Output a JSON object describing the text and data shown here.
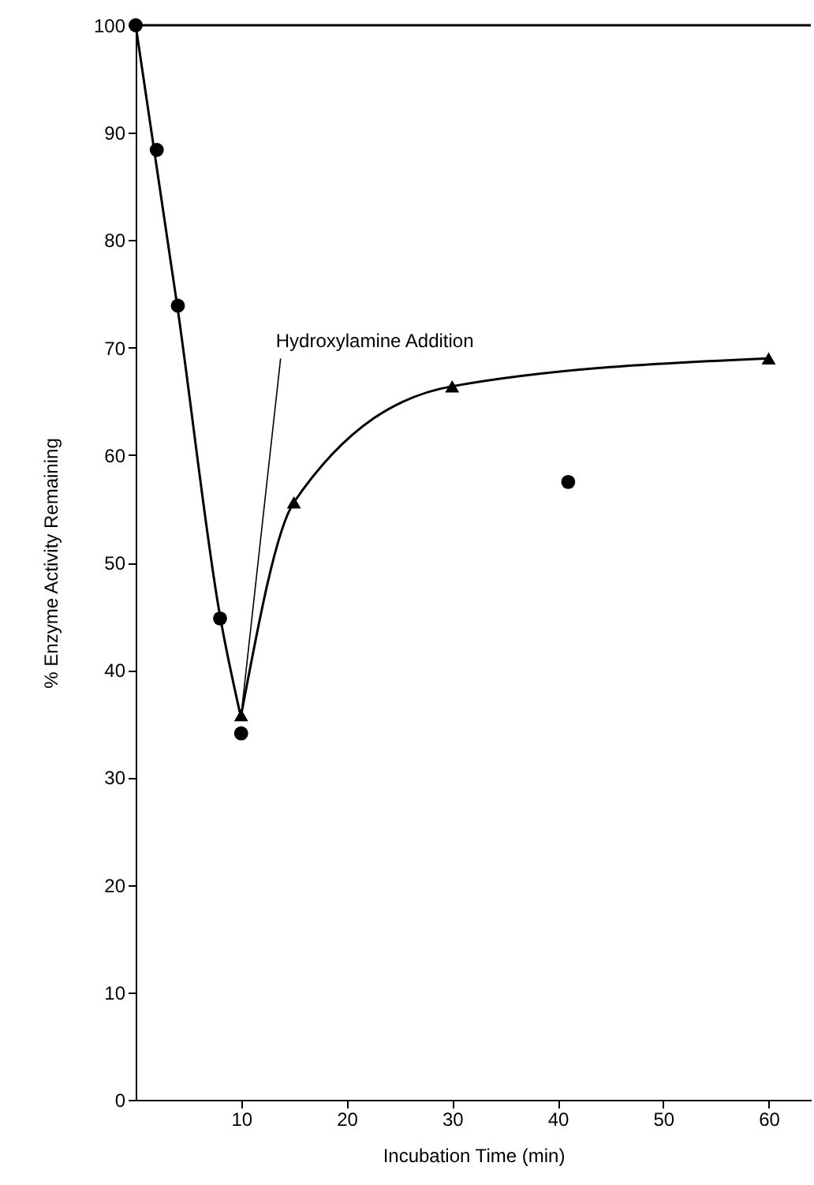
{
  "chart_data": {
    "type": "scatter",
    "xlabel": "Incubation Time (min)",
    "ylabel": "% Enzyme Activity Remaining",
    "xlim": [
      0,
      64
    ],
    "ylim": [
      0,
      100
    ],
    "xticks": [
      10,
      20,
      30,
      40,
      50,
      60
    ],
    "yticks": [
      0,
      10,
      20,
      30,
      40,
      50,
      60,
      70,
      80,
      90,
      100
    ],
    "grid": false,
    "series": [
      {
        "type": "line",
        "marker": "none",
        "color": "#000000",
        "x": [
          0,
          4,
          8,
          10
        ],
        "values": [
          100,
          73.5,
          45,
          35.5
        ]
      },
      {
        "marker": "circle",
        "color": "#000000",
        "x": [
          0,
          2,
          4,
          8,
          10,
          41
        ],
        "values": [
          100,
          88.4,
          73.9,
          44.8,
          34.1,
          57.5
        ]
      },
      {
        "type": "line",
        "marker": "triangle",
        "color": "#000000",
        "x": [
          10,
          15,
          30,
          60
        ],
        "values": [
          35.8,
          55.6,
          66.4,
          69
        ]
      }
    ],
    "ref_lines": [
      {
        "axis": "y",
        "value": 100,
        "color": "#000000"
      }
    ],
    "annotations": [
      {
        "text": "Hydroxylamine Addition",
        "x": 10,
        "y": 35.8
      }
    ]
  }
}
